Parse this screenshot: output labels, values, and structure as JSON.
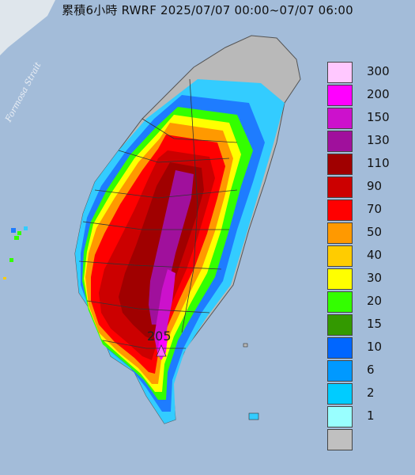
{
  "title": "累積6小時 RWRF 2025/07/07 00:00~07/07 06:00",
  "strait_label": "Formosa Strait",
  "max_value_label": "205",
  "legend": [
    {
      "label": "300",
      "color": "#ffc8ff"
    },
    {
      "label": "200",
      "color": "#ff00ff"
    },
    {
      "label": "150",
      "color": "#cc11cc"
    },
    {
      "label": "130",
      "color": "#a0109c"
    },
    {
      "label": "110",
      "color": "#a00000"
    },
    {
      "label": "90",
      "color": "#cc0000"
    },
    {
      "label": "70",
      "color": "#ff0000"
    },
    {
      "label": "50",
      "color": "#ff9900"
    },
    {
      "label": "40",
      "color": "#ffcc00"
    },
    {
      "label": "30",
      "color": "#ffff00"
    },
    {
      "label": "20",
      "color": "#33ff00"
    },
    {
      "label": "15",
      "color": "#339900"
    },
    {
      "label": "10",
      "color": "#0066ff"
    },
    {
      "label": "6",
      "color": "#0099ff"
    },
    {
      "label": "2",
      "color": "#00ccff"
    },
    {
      "label": "1",
      "color": "#99ffff"
    },
    {
      "label": "",
      "color": "#c0c0c0"
    }
  ]
}
